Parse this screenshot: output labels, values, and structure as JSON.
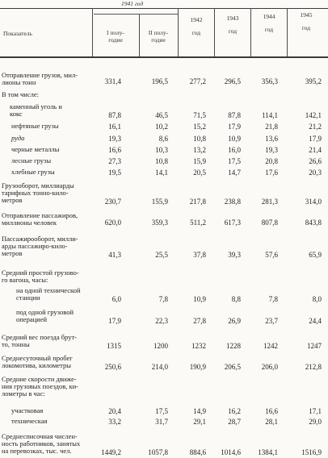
{
  "header": {
    "indicator_label": "Показатель",
    "year_1941": "1941 год",
    "half1": "I полу-\nгодие",
    "half2": "II полу-\nгодие",
    "year_1942": "1942\nгод",
    "year_1943": "1943\nгод",
    "year_1944": "1944\nгод",
    "year_1945": "1945\nгод"
  },
  "rows": [
    {
      "label": "Отправление грузов, мил-\nлионы тонн",
      "values": [
        "331,4",
        "196,5",
        "277,2",
        "296,5",
        "356,3",
        "395,2"
      ]
    },
    {
      "label": "В том числе:",
      "values": []
    },
    {
      "label": "каменный уголь и\nкокс",
      "values": [
        "87,8",
        "46,5",
        "71,5",
        "87,8",
        "114,1",
        "142,1"
      ]
    },
    {
      "label": "нефтяные грузы",
      "values": [
        "16,1",
        "10,2",
        "15,2",
        "17,9",
        "21,8",
        "21,2"
      ]
    },
    {
      "label": "руда",
      "values": [
        "19,3",
        "8,6",
        "10,8",
        "10,9",
        "13,6",
        "17,9"
      ]
    },
    {
      "label": "черные металлы",
      "values": [
        "16,6",
        "10,3",
        "13,2",
        "16,0",
        "19,3",
        "21,4"
      ]
    },
    {
      "label": "лесные грузы",
      "values": [
        "27,3",
        "10,8",
        "15,9",
        "17,5",
        "20,8",
        "26,6"
      ]
    },
    {
      "label": "хлебные грузы",
      "values": [
        "19,5",
        "14,1",
        "20,5",
        "14,7",
        "17,6",
        "20,3"
      ]
    },
    {
      "label": "Грузооборот, миллиарды\nтарифных тонно-кило-\nметров",
      "values": [
        "230,7",
        "155,9",
        "217,8",
        "238,8",
        "281,3",
        "314,0"
      ]
    },
    {
      "label": "Отправление пассажиров,\nмиллионы человек",
      "values": [
        "620,0",
        "359,3",
        "511,2",
        "617,3",
        "807,8",
        "843,8"
      ]
    },
    {
      "label": "Пассажирооборот, милли-\nарды пассажиро-кило-\nметров",
      "values": [
        "41,3",
        "25,5",
        "37,8",
        "39,3",
        "57,6",
        "65,9"
      ]
    },
    {
      "label": "Средний простой грузово-\nго вагона, часы:",
      "values": []
    },
    {
      "label": "на одной технической\nстанции",
      "values": [
        "6,0",
        "7,8",
        "10,9",
        "8,8",
        "7,8",
        "8,0"
      ]
    },
    {
      "label": "под одной грузовой\nоперацией",
      "values": [
        "17,9",
        "22,3",
        "27,8",
        "26,9",
        "23,7",
        "24,4"
      ]
    },
    {
      "label": "Средний вес поезда брут-\nто, тонны",
      "values": [
        "1315",
        "1200",
        "1232",
        "1228",
        "1242",
        "1247"
      ]
    },
    {
      "label": "Среднесуточный пробег\nлокомотива, километры",
      "values": [
        "250,6",
        "214,0",
        "190,9",
        "206,5",
        "206,0",
        "212,8"
      ]
    },
    {
      "label": "Средние скорости движе-\nния грузовых поездов, ки-\nлометры в час:",
      "values": []
    },
    {
      "label": "участковая",
      "values": [
        "20,4",
        "17,5",
        "14,9",
        "16,2",
        "16,6",
        "17,1"
      ]
    },
    {
      "label": "техническая",
      "values": [
        "33,2",
        "31,7",
        "29,1",
        "28,7",
        "28,1",
        "29,0"
      ]
    },
    {
      "label": "Среднесписочная числен-\nность работников, занятых\nна перевозках, тыс. чел.",
      "values": [
        "1449,2",
        "1057,8",
        "884,6",
        "1014,6",
        "1384,1",
        "1516,9"
      ]
    }
  ]
}
